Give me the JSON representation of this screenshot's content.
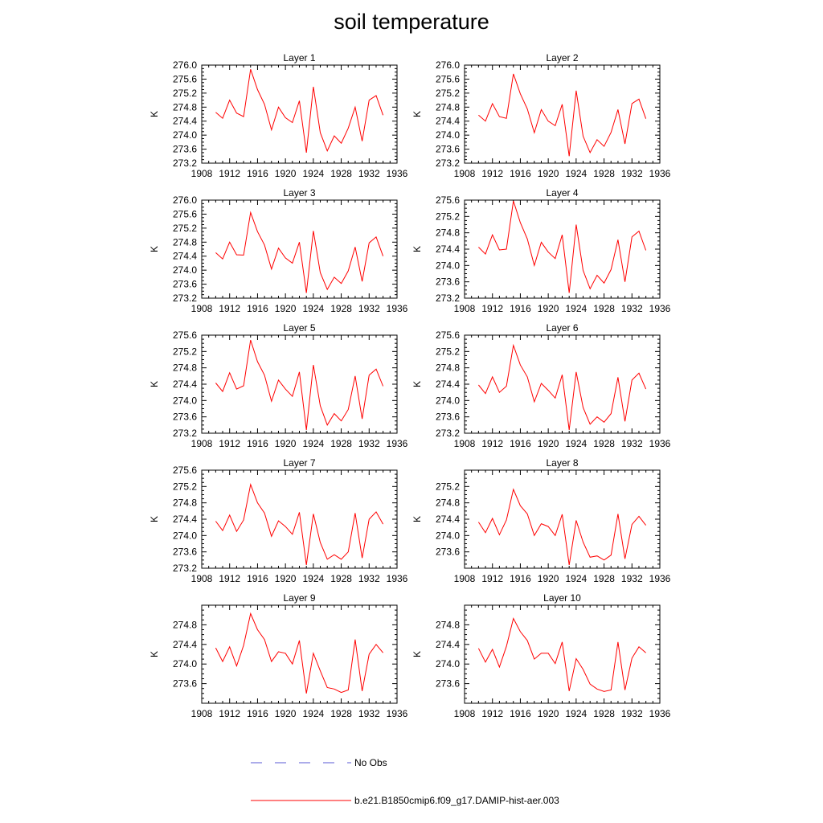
{
  "title": "soil temperature",
  "legend": {
    "entries": [
      {
        "label": "No Obs",
        "color": "#5a5ad6",
        "style": "dashed"
      },
      {
        "label": "b.e21.B1850cmip6.f09_g17.DAMIP-hist-aer.003",
        "color": "#ff0000",
        "style": "solid"
      }
    ]
  },
  "chart_data": [
    {
      "type": "line",
      "title": "Layer 1",
      "ylabel": "K",
      "xlim": [
        1908,
        1936
      ],
      "ylim": [
        273.2,
        276.0
      ],
      "xticks": [
        "1908",
        "1912",
        "1916",
        "1920",
        "1924",
        "1928",
        "1932",
        "1936"
      ],
      "yticks": [
        "273.2",
        "273.6",
        "274.0",
        "274.4",
        "274.8",
        "275.2",
        "275.6",
        "276.0"
      ],
      "x": [
        1910,
        1911,
        1912,
        1913,
        1914,
        1915,
        1916,
        1917,
        1918,
        1919,
        1920,
        1921,
        1922,
        1923,
        1924,
        1925,
        1926,
        1927,
        1928,
        1929,
        1930,
        1931,
        1932,
        1933,
        1934
      ],
      "series": [
        {
          "name": "b.e21.B1850cmip6.f09_g17.DAMIP-hist-aer.003",
          "color": "#ff0000",
          "values": [
            274.65,
            274.48,
            275.0,
            274.63,
            274.53,
            275.88,
            275.3,
            274.88,
            274.15,
            274.8,
            274.5,
            274.36,
            274.98,
            273.5,
            275.38,
            274.07,
            273.55,
            273.98,
            273.77,
            274.2,
            274.8,
            273.83,
            275.0,
            275.13,
            274.57
          ]
        }
      ]
    },
    {
      "type": "line",
      "title": "Layer 2",
      "ylabel": "K",
      "xlim": [
        1908,
        1936
      ],
      "ylim": [
        273.2,
        276.0
      ],
      "xticks": [
        "1908",
        "1912",
        "1916",
        "1920",
        "1924",
        "1928",
        "1932",
        "1936"
      ],
      "yticks": [
        "273.2",
        "273.6",
        "274.0",
        "274.4",
        "274.8",
        "275.2",
        "275.6",
        "276.0"
      ],
      "x": [
        1910,
        1911,
        1912,
        1913,
        1914,
        1915,
        1916,
        1917,
        1918,
        1919,
        1920,
        1921,
        1922,
        1923,
        1924,
        1925,
        1926,
        1927,
        1928,
        1929,
        1930,
        1931,
        1932,
        1933,
        1934
      ],
      "series": [
        {
          "name": "b.e21.B1850cmip6.f09_g17.DAMIP-hist-aer.003",
          "color": "#ff0000",
          "values": [
            274.57,
            274.4,
            274.9,
            274.53,
            274.48,
            275.75,
            275.18,
            274.75,
            274.07,
            274.73,
            274.4,
            274.27,
            274.88,
            273.4,
            275.27,
            273.97,
            273.5,
            273.87,
            273.68,
            274.08,
            274.73,
            273.75,
            274.9,
            275.03,
            274.47
          ]
        }
      ]
    },
    {
      "type": "line",
      "title": "Layer 3",
      "ylabel": "K",
      "xlim": [
        1908,
        1936
      ],
      "ylim": [
        273.2,
        276.0
      ],
      "xticks": [
        "1908",
        "1912",
        "1916",
        "1920",
        "1924",
        "1928",
        "1932",
        "1936"
      ],
      "yticks": [
        "273.2",
        "273.6",
        "274.0",
        "274.4",
        "274.8",
        "275.2",
        "275.6",
        "276.0"
      ],
      "x": [
        1910,
        1911,
        1912,
        1913,
        1914,
        1915,
        1916,
        1917,
        1918,
        1919,
        1920,
        1921,
        1922,
        1923,
        1924,
        1925,
        1926,
        1927,
        1928,
        1929,
        1930,
        1931,
        1932,
        1933,
        1934
      ],
      "series": [
        {
          "name": "b.e21.B1850cmip6.f09_g17.DAMIP-hist-aer.003",
          "color": "#ff0000",
          "values": [
            274.5,
            274.32,
            274.8,
            274.44,
            274.43,
            275.65,
            275.1,
            274.72,
            274.03,
            274.63,
            274.35,
            274.2,
            274.8,
            273.35,
            275.12,
            273.93,
            273.45,
            273.8,
            273.62,
            273.98,
            274.66,
            273.68,
            274.78,
            274.95,
            274.4
          ]
        }
      ]
    },
    {
      "type": "line",
      "title": "Layer 4",
      "ylabel": "K",
      "xlim": [
        1908,
        1936
      ],
      "ylim": [
        273.2,
        275.6
      ],
      "xticks": [
        "1908",
        "1912",
        "1916",
        "1920",
        "1924",
        "1928",
        "1932",
        "1936"
      ],
      "yticks": [
        "273.2",
        "273.6",
        "274.0",
        "274.4",
        "274.8",
        "275.2",
        "275.6"
      ],
      "x": [
        1910,
        1911,
        1912,
        1913,
        1914,
        1915,
        1916,
        1917,
        1918,
        1919,
        1920,
        1921,
        1922,
        1923,
        1924,
        1925,
        1926,
        1927,
        1928,
        1929,
        1930,
        1931,
        1932,
        1933,
        1934
      ],
      "series": [
        {
          "name": "b.e21.B1850cmip6.f09_g17.DAMIP-hist-aer.003",
          "color": "#ff0000",
          "values": [
            274.45,
            274.28,
            274.75,
            274.38,
            274.4,
            275.58,
            275.05,
            274.65,
            274.0,
            274.57,
            274.33,
            274.17,
            274.75,
            273.33,
            275.0,
            273.88,
            273.43,
            273.76,
            273.57,
            273.9,
            274.63,
            273.6,
            274.7,
            274.84,
            274.37
          ]
        }
      ]
    },
    {
      "type": "line",
      "title": "Layer 5",
      "ylabel": "K",
      "xlim": [
        1908,
        1936
      ],
      "ylim": [
        273.2,
        275.6
      ],
      "xticks": [
        "1908",
        "1912",
        "1916",
        "1920",
        "1924",
        "1928",
        "1932",
        "1936"
      ],
      "yticks": [
        "273.2",
        "273.6",
        "274.0",
        "274.4",
        "274.8",
        "275.2",
        "275.6"
      ],
      "x": [
        1910,
        1911,
        1912,
        1913,
        1914,
        1915,
        1916,
        1917,
        1918,
        1919,
        1920,
        1921,
        1922,
        1923,
        1924,
        1925,
        1926,
        1927,
        1928,
        1929,
        1930,
        1931,
        1932,
        1933,
        1934
      ],
      "series": [
        {
          "name": "b.e21.B1850cmip6.f09_g17.DAMIP-hist-aer.003",
          "color": "#ff0000",
          "values": [
            274.43,
            274.22,
            274.68,
            274.28,
            274.36,
            275.48,
            274.95,
            274.62,
            273.98,
            274.5,
            274.28,
            274.1,
            274.7,
            273.28,
            274.87,
            273.87,
            273.4,
            273.68,
            273.5,
            273.78,
            274.6,
            273.55,
            274.62,
            274.77,
            274.35
          ]
        }
      ]
    },
    {
      "type": "line",
      "title": "Layer 6",
      "ylabel": "K",
      "xlim": [
        1908,
        1936
      ],
      "ylim": [
        273.2,
        275.6
      ],
      "xticks": [
        "1908",
        "1912",
        "1916",
        "1920",
        "1924",
        "1928",
        "1932",
        "1936"
      ],
      "yticks": [
        "273.2",
        "273.6",
        "274.0",
        "274.4",
        "274.8",
        "275.2",
        "275.6"
      ],
      "x": [
        1910,
        1911,
        1912,
        1913,
        1914,
        1915,
        1916,
        1917,
        1918,
        1919,
        1920,
        1921,
        1922,
        1923,
        1924,
        1925,
        1926,
        1927,
        1928,
        1929,
        1930,
        1931,
        1932,
        1933,
        1934
      ],
      "series": [
        {
          "name": "b.e21.B1850cmip6.f09_g17.DAMIP-hist-aer.003",
          "color": "#ff0000",
          "values": [
            274.38,
            274.17,
            274.58,
            274.2,
            274.35,
            275.35,
            274.87,
            274.58,
            273.97,
            274.42,
            274.25,
            274.06,
            274.63,
            273.28,
            274.7,
            273.83,
            273.42,
            273.6,
            273.47,
            273.68,
            274.57,
            273.49,
            274.5,
            274.67,
            274.28
          ]
        }
      ]
    },
    {
      "type": "line",
      "title": "Layer 7",
      "ylabel": "K",
      "xlim": [
        1908,
        1936
      ],
      "ylim": [
        273.2,
        275.6
      ],
      "xticks": [
        "1908",
        "1912",
        "1916",
        "1920",
        "1924",
        "1928",
        "1932",
        "1936"
      ],
      "yticks": [
        "273.2",
        "273.6",
        "274.0",
        "274.4",
        "274.8",
        "275.2",
        "275.6"
      ],
      "x": [
        1910,
        1911,
        1912,
        1913,
        1914,
        1915,
        1916,
        1917,
        1918,
        1919,
        1920,
        1921,
        1922,
        1923,
        1924,
        1925,
        1926,
        1927,
        1928,
        1929,
        1930,
        1931,
        1932,
        1933,
        1934
      ],
      "series": [
        {
          "name": "b.e21.B1850cmip6.f09_g17.DAMIP-hist-aer.003",
          "color": "#ff0000",
          "values": [
            274.35,
            274.12,
            274.5,
            274.1,
            274.38,
            275.25,
            274.8,
            274.55,
            273.98,
            274.36,
            274.22,
            274.03,
            274.57,
            273.28,
            274.53,
            273.83,
            273.42,
            273.53,
            273.42,
            273.6,
            274.55,
            273.45,
            274.4,
            274.58,
            274.28
          ]
        }
      ]
    },
    {
      "type": "line",
      "title": "Layer 8",
      "ylabel": "K",
      "xlim": [
        1908,
        1936
      ],
      "ylim": [
        273.2,
        275.6
      ],
      "xticks": [
        "1908",
        "1912",
        "1916",
        "1920",
        "1924",
        "1928",
        "1932",
        "1936"
      ],
      "yticks": [
        "273.6",
        "274.0",
        "274.4",
        "274.8",
        "275.2"
      ],
      "x": [
        1910,
        1911,
        1912,
        1913,
        1914,
        1915,
        1916,
        1917,
        1918,
        1919,
        1920,
        1921,
        1922,
        1923,
        1924,
        1925,
        1926,
        1927,
        1928,
        1929,
        1930,
        1931,
        1932,
        1933,
        1934
      ],
      "series": [
        {
          "name": "b.e21.B1850cmip6.f09_g17.DAMIP-hist-aer.003",
          "color": "#ff0000",
          "values": [
            274.33,
            274.07,
            274.42,
            274.02,
            274.38,
            275.13,
            274.73,
            274.53,
            274.0,
            274.29,
            274.22,
            274.0,
            274.52,
            273.28,
            274.37,
            273.84,
            273.47,
            273.5,
            273.4,
            273.52,
            274.53,
            273.43,
            274.27,
            274.47,
            274.25
          ]
        }
      ]
    },
    {
      "type": "line",
      "title": "Layer 9",
      "ylabel": "K",
      "xlim": [
        1908,
        1936
      ],
      "ylim": [
        273.2,
        275.2
      ],
      "xticks": [
        "1908",
        "1912",
        "1916",
        "1920",
        "1924",
        "1928",
        "1932",
        "1936"
      ],
      "yticks": [
        "273.6",
        "274.0",
        "274.4",
        "274.8"
      ],
      "x": [
        1910,
        1911,
        1912,
        1913,
        1914,
        1915,
        1916,
        1917,
        1918,
        1919,
        1920,
        1921,
        1922,
        1923,
        1924,
        1925,
        1926,
        1927,
        1928,
        1929,
        1930,
        1931,
        1932,
        1933,
        1934
      ],
      "series": [
        {
          "name": "b.e21.B1850cmip6.f09_g17.DAMIP-hist-aer.003",
          "color": "#ff0000",
          "values": [
            274.33,
            274.05,
            274.35,
            273.96,
            274.38,
            275.03,
            274.7,
            274.5,
            274.05,
            274.25,
            274.22,
            274.0,
            274.48,
            273.4,
            274.22,
            273.86,
            273.52,
            273.49,
            273.42,
            273.47,
            274.5,
            273.45,
            274.2,
            274.4,
            274.23
          ]
        }
      ]
    },
    {
      "type": "line",
      "title": "Layer 10",
      "ylabel": "K",
      "xlim": [
        1908,
        1936
      ],
      "ylim": [
        273.2,
        275.2
      ],
      "xticks": [
        "1908",
        "1912",
        "1916",
        "1920",
        "1924",
        "1928",
        "1932",
        "1936"
      ],
      "yticks": [
        "273.6",
        "274.0",
        "274.4",
        "274.8"
      ],
      "x": [
        1910,
        1911,
        1912,
        1913,
        1914,
        1915,
        1916,
        1917,
        1918,
        1919,
        1920,
        1921,
        1922,
        1923,
        1924,
        1925,
        1926,
        1927,
        1928,
        1929,
        1930,
        1931,
        1932,
        1933,
        1934
      ],
      "series": [
        {
          "name": "b.e21.B1850cmip6.f09_g17.DAMIP-hist-aer.003",
          "color": "#ff0000",
          "values": [
            274.32,
            274.04,
            274.3,
            273.94,
            274.36,
            274.93,
            274.66,
            274.48,
            274.1,
            274.22,
            274.22,
            274.01,
            274.45,
            273.45,
            274.11,
            273.89,
            273.59,
            273.49,
            273.44,
            273.47,
            274.45,
            273.47,
            274.12,
            274.35,
            274.23
          ]
        }
      ]
    }
  ]
}
